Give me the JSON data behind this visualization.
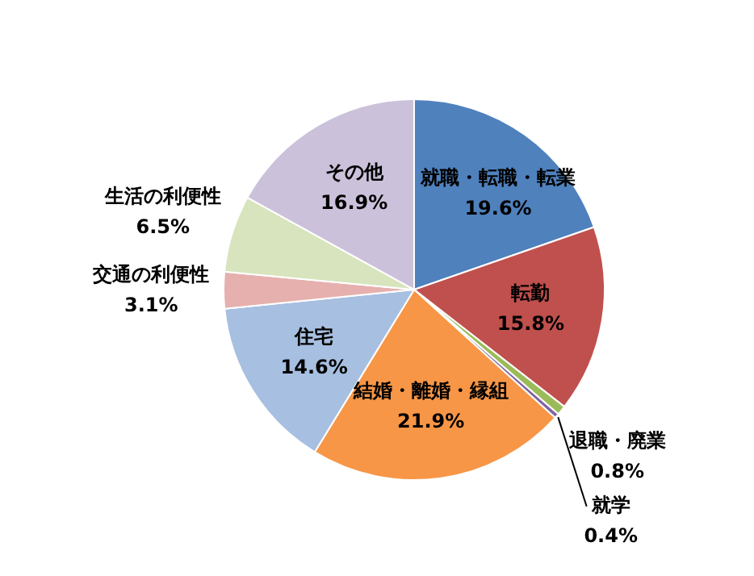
{
  "chart_data": {
    "type": "pie",
    "categories": [
      "就職・転職・転業",
      "転勤",
      "退職・廃業",
      "就学",
      "結婚・離婚・縁組",
      "住宅",
      "交通の利便性",
      "生活の利便性",
      "その他"
    ],
    "values": [
      19.6,
      15.8,
      0.8,
      0.4,
      21.9,
      14.6,
      3.1,
      6.5,
      16.9
    ],
    "value_labels": [
      "19.6%",
      "15.8%",
      "0.8%",
      "0.4%",
      "21.9%",
      "14.6%",
      "3.1%",
      "6.5%",
      "16.9%"
    ],
    "colors": [
      "#4f81bd",
      "#c0504d",
      "#9bbb59",
      "#8064a2",
      "#f79646",
      "#a7bfe0",
      "#e6b0ae",
      "#d7e4bd",
      "#ccc1da"
    ],
    "legend": false
  }
}
